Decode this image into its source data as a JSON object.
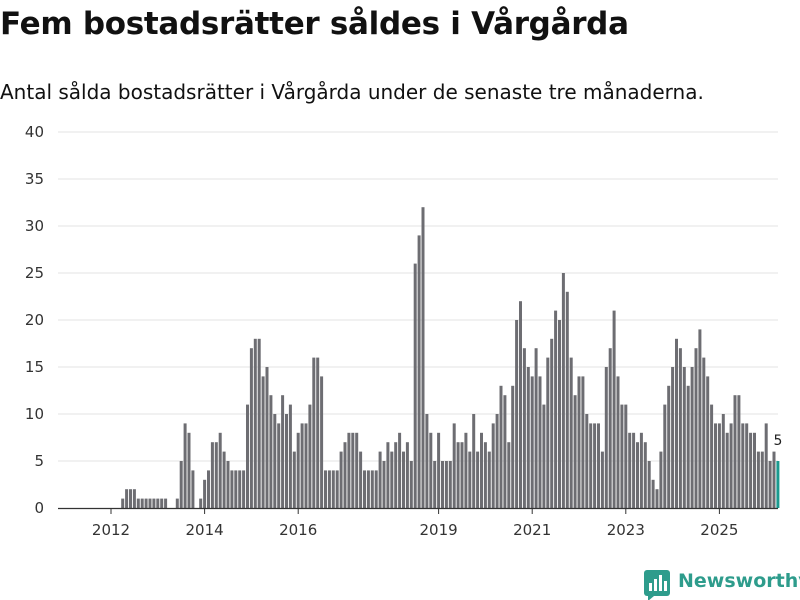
{
  "title": "Fem bostadsrätter såldes i Vårgårda",
  "subtitle": "Antal sålda bostadsrätter i Vårgårda under de senaste tre månaderna.",
  "brand": {
    "name": "Newsworthy",
    "color": "#2e9c8c"
  },
  "colors": {
    "bar": "#6d6d72",
    "highlight": "#1b9a8f",
    "grid": "#e3e3e3",
    "axis": "#333333"
  },
  "chart_data": {
    "type": "bar",
    "title": "Fem bostadsrätter såldes i Vårgårda",
    "xlabel": "",
    "ylabel": "",
    "ylim": [
      0,
      40
    ],
    "yticks": [
      0,
      5,
      10,
      15,
      20,
      25,
      30,
      35,
      40
    ],
    "grid": true,
    "x_start": "2011-08",
    "x_tick_labels": [
      {
        "label": "2012",
        "index": 5
      },
      {
        "label": "2014",
        "index": 29
      },
      {
        "label": "2016",
        "index": 53
      },
      {
        "label": "2019",
        "index": 89
      },
      {
        "label": "2021",
        "index": 113
      },
      {
        "label": "2023",
        "index": 137
      },
      {
        "label": "2025",
        "index": 161
      }
    ],
    "values": [
      0,
      0,
      0,
      0,
      0,
      0,
      0,
      0,
      1,
      2,
      2,
      2,
      1,
      1,
      1,
      1,
      1,
      1,
      1,
      1,
      0,
      0,
      1,
      5,
      9,
      8,
      4,
      0,
      1,
      3,
      4,
      7,
      7,
      8,
      6,
      5,
      4,
      4,
      4,
      4,
      11,
      17,
      18,
      18,
      14,
      15,
      12,
      10,
      9,
      12,
      10,
      11,
      6,
      8,
      9,
      9,
      11,
      16,
      16,
      14,
      4,
      4,
      4,
      4,
      6,
      7,
      8,
      8,
      8,
      6,
      4,
      4,
      4,
      4,
      6,
      5,
      7,
      6,
      7,
      8,
      6,
      7,
      5,
      26,
      29,
      32,
      10,
      8,
      5,
      8,
      5,
      5,
      5,
      9,
      7,
      7,
      8,
      6,
      10,
      6,
      8,
      7,
      6,
      9,
      10,
      13,
      12,
      7,
      13,
      20,
      22,
      17,
      15,
      14,
      17,
      14,
      11,
      16,
      18,
      21,
      20,
      25,
      23,
      16,
      12,
      14,
      14,
      10,
      9,
      9,
      9,
      6,
      15,
      17,
      21,
      14,
      11,
      11,
      8,
      8,
      7,
      8,
      7,
      5,
      3,
      2,
      6,
      11,
      13,
      15,
      18,
      17,
      15,
      13,
      15,
      17,
      19,
      16,
      14,
      11,
      9,
      9,
      10,
      8,
      9,
      12,
      12,
      9,
      9,
      8,
      8,
      6,
      6,
      9,
      5,
      6,
      5
    ],
    "highlight_label": "5",
    "annotations": [
      "5"
    ]
  }
}
